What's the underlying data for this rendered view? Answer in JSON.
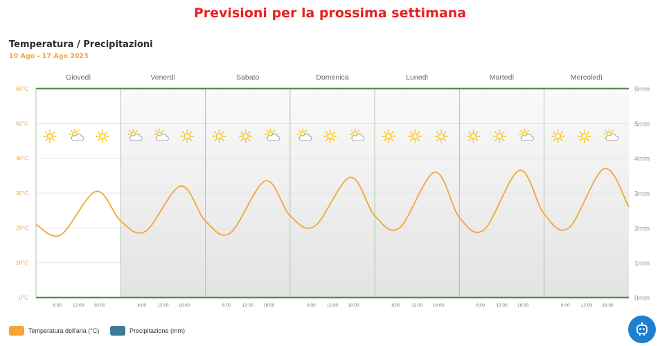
{
  "headline": "Previsioni per la prossima settimana",
  "chart_title": "Temperatura / Precipitazioni",
  "chart_subtitle": "10 Ago - 17 Ago 2023",
  "legend": {
    "temperature": "Temperatura dell'aria (°C)",
    "precipitation": "Precipitazione (mm)"
  },
  "colors": {
    "temperature": "#f3a536",
    "precipitation": "#3e7a9a",
    "headline": "#e8201f",
    "frame": "#5c8f55",
    "assistant_button": "#1f7fcf"
  },
  "assistant_icon": "robot-icon",
  "chart_data": {
    "type": "line",
    "title": "Temperatura / Precipitazioni",
    "subtitle": "10 Ago - 17 Ago 2023",
    "days": [
      "Giovedì",
      "Venerdì",
      "Sabato",
      "Domenica",
      "Lunedì",
      "Martedì",
      "Mercoledì"
    ],
    "hour_ticks": [
      "6:00",
      "12:00",
      "18:00"
    ],
    "y_left": {
      "label": "",
      "unit": "°C",
      "ticks": [
        "0°C",
        "10°C",
        "20°C",
        "30°C",
        "40°C",
        "50°C",
        "60°C"
      ],
      "range": [
        0,
        60
      ]
    },
    "y_right": {
      "label": "",
      "unit": "mm",
      "ticks": [
        "0mm",
        "1mm",
        "2mm",
        "3mm",
        "4mm",
        "5mm",
        "6mm"
      ],
      "range": [
        0,
        6
      ]
    },
    "x_range_hours": [
      0,
      168
    ],
    "grid": true,
    "legend_position": "bottom-left",
    "series": [
      {
        "name": "Temperatura dell'aria (°C)",
        "axis": "left",
        "x_hours": [
          0,
          7,
          17,
          24,
          31,
          41,
          48,
          55,
          65,
          72,
          79,
          89,
          96,
          103,
          113,
          120,
          127,
          137,
          144,
          151,
          161,
          168
        ],
        "values": [
          21,
          18,
          30.5,
          22,
          19,
          32,
          22,
          18.5,
          33.5,
          23.5,
          20.5,
          34.5,
          23.5,
          20,
          36,
          23,
          19.5,
          36.5,
          24,
          20,
          37,
          26
        ]
      },
      {
        "name": "Precipitazione (mm)",
        "axis": "right",
        "values": []
      }
    ],
    "weather_icons": [
      [
        "sun",
        "partly-cloudy",
        "sun"
      ],
      [
        "partly-cloudy",
        "partly-cloudy",
        "sun"
      ],
      [
        "sun",
        "sun",
        "partly-cloudy"
      ],
      [
        "partly-cloudy",
        "sun",
        "partly-cloudy"
      ],
      [
        "sun",
        "sun",
        "sun"
      ],
      [
        "sun",
        "sun",
        "partly-cloudy"
      ],
      [
        "sun",
        "sun",
        "partly-cloudy"
      ]
    ]
  }
}
